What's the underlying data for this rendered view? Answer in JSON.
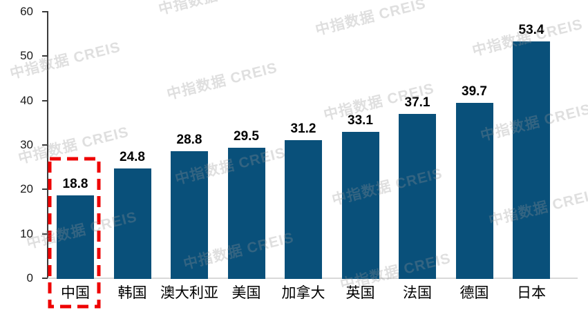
{
  "watermark_text": "中指数据 CREIS",
  "chart_data": {
    "type": "bar",
    "title": "",
    "xlabel": "",
    "ylabel": "",
    "categories": [
      "中国",
      "韩国",
      "澳大利亚",
      "美国",
      "加拿大",
      "英国",
      "法国",
      "德国",
      "日本"
    ],
    "values": [
      18.8,
      24.8,
      28.8,
      29.5,
      31.2,
      33.1,
      37.1,
      39.7,
      53.4
    ],
    "data_labels": [
      "18.8",
      "24.8",
      "28.8",
      "29.5",
      "31.2",
      "33.1",
      "37.1",
      "39.7",
      "53.4"
    ],
    "ylim": [
      0,
      60
    ],
    "yticks": [
      "0",
      "10",
      "20",
      "30",
      "40",
      "50",
      "60"
    ],
    "grid": false,
    "legend": false,
    "bar_color": "#09507A",
    "axis_color": "#3a3a3a",
    "baseline_color": "#d9d9d9",
    "highlight": {
      "category": "中国",
      "shape": "dashed-rectangle",
      "color": "#EE0000"
    }
  }
}
